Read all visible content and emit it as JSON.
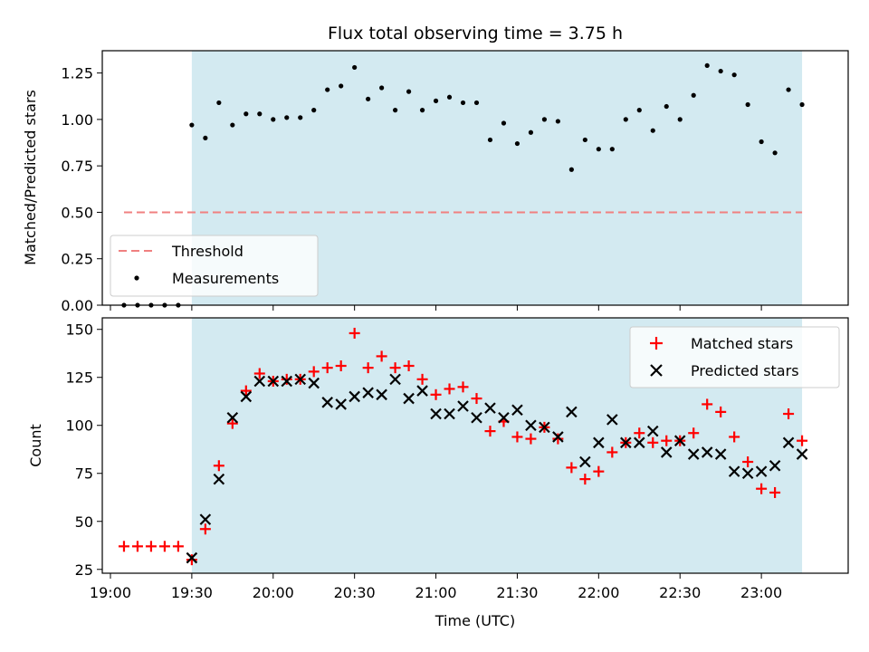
{
  "chart_data": [
    {
      "type": "scatter",
      "title": "Flux total observing time = 3.75 h",
      "ylabel": "Matched/Predicted stars",
      "xlabel": "",
      "x_range": [
        "18:57",
        "23:32"
      ],
      "ylim": [
        0,
        1.37
      ],
      "yticks": [
        "0.00",
        "0.25",
        "0.50",
        "0.75",
        "1.00",
        "1.25"
      ],
      "ytick_values": [
        0,
        0.25,
        0.5,
        0.75,
        1.0,
        1.25
      ],
      "observing_window": [
        "19:30",
        "23:15"
      ],
      "shade_color": "#d3eaf1",
      "threshold": {
        "name": "Threshold",
        "value": 0.5,
        "x_range": [
          "19:05",
          "23:15"
        ],
        "color": "#f08080"
      },
      "measurements": {
        "name": "Measurements",
        "color": "#000000",
        "x": [
          "19:05",
          "19:10",
          "19:15",
          "19:20",
          "19:25",
          "19:30",
          "19:35",
          "19:40",
          "19:45",
          "19:50",
          "19:55",
          "20:00",
          "20:05",
          "20:10",
          "20:15",
          "20:20",
          "20:25",
          "20:30",
          "20:35",
          "20:40",
          "20:45",
          "20:50",
          "20:55",
          "21:00",
          "21:05",
          "21:10",
          "21:15",
          "21:20",
          "21:25",
          "21:30",
          "21:35",
          "21:40",
          "21:45",
          "21:50",
          "21:55",
          "22:00",
          "22:05",
          "22:10",
          "22:15",
          "22:20",
          "22:25",
          "22:30",
          "22:35",
          "22:40",
          "22:45",
          "22:50",
          "22:55",
          "23:00",
          "23:05",
          "23:10",
          "23:15"
        ],
        "y": [
          0,
          0,
          0,
          0,
          0,
          0.97,
          0.9,
          1.09,
          0.97,
          1.03,
          1.03,
          1.0,
          1.01,
          1.01,
          1.05,
          1.16,
          1.18,
          1.28,
          1.11,
          1.17,
          1.05,
          1.15,
          1.05,
          1.1,
          1.12,
          1.09,
          1.09,
          0.89,
          0.98,
          0.87,
          0.93,
          1.0,
          0.99,
          0.73,
          0.89,
          0.84,
          0.84,
          1.0,
          1.05,
          0.94,
          1.07,
          1.0,
          1.13,
          1.29,
          1.26,
          1.24,
          1.08,
          0.88,
          0.82,
          1.16,
          1.08
        ]
      },
      "legend": {
        "position": "lower-left",
        "entries": [
          "Threshold",
          "Measurements"
        ]
      }
    },
    {
      "type": "scatter",
      "title": "",
      "xlabel": "Time (UTC)",
      "ylabel": "Count",
      "x_range": [
        "18:57",
        "23:32"
      ],
      "xticks": [
        "19:00",
        "19:30",
        "20:00",
        "20:30",
        "21:00",
        "21:30",
        "22:00",
        "22:30",
        "23:00"
      ],
      "ylim": [
        23,
        156
      ],
      "yticks": [
        "25",
        "50",
        "75",
        "100",
        "125",
        "150"
      ],
      "ytick_values": [
        25,
        50,
        75,
        100,
        125,
        150
      ],
      "observing_window": [
        "19:30",
        "23:15"
      ],
      "shade_color": "#d3eaf1",
      "x": [
        "19:05",
        "19:10",
        "19:15",
        "19:20",
        "19:25",
        "19:30",
        "19:35",
        "19:40",
        "19:45",
        "19:50",
        "19:55",
        "20:00",
        "20:05",
        "20:10",
        "20:15",
        "20:20",
        "20:25",
        "20:30",
        "20:35",
        "20:40",
        "20:45",
        "20:50",
        "20:55",
        "21:00",
        "21:05",
        "21:10",
        "21:15",
        "21:20",
        "21:25",
        "21:30",
        "21:35",
        "21:40",
        "21:45",
        "21:50",
        "21:55",
        "22:00",
        "22:05",
        "22:10",
        "22:15",
        "22:20",
        "22:25",
        "22:30",
        "22:35",
        "22:40",
        "22:45",
        "22:50",
        "22:55",
        "23:00",
        "23:05",
        "23:10",
        "23:15"
      ],
      "series": [
        {
          "name": "Matched stars",
          "marker": "plus",
          "color": "#ff0000",
          "values": [
            37,
            37,
            37,
            37,
            37,
            30,
            46,
            79,
            101,
            118,
            127,
            123,
            124,
            124,
            128,
            130,
            131,
            148,
            130,
            136,
            130,
            131,
            124,
            116,
            119,
            120,
            114,
            97,
            102,
            94,
            93,
            99,
            93,
            78,
            72,
            76,
            86,
            91,
            96,
            91,
            92,
            92,
            96,
            111,
            107,
            94,
            81,
            67,
            65,
            106,
            92
          ]
        },
        {
          "name": "Predicted stars",
          "marker": "x",
          "color": "#000000",
          "values": [
            null,
            null,
            null,
            null,
            null,
            31,
            51,
            72,
            104,
            115,
            123,
            123,
            123,
            124,
            122,
            112,
            111,
            115,
            117,
            116,
            124,
            114,
            118,
            106,
            106,
            110,
            104,
            109,
            104,
            108,
            100,
            99,
            94,
            107,
            81,
            91,
            103,
            91,
            91,
            97,
            86,
            92,
            85,
            86,
            85,
            76,
            75,
            76,
            79,
            91,
            85
          ]
        }
      ],
      "legend": {
        "position": "upper-right",
        "entries": [
          "Matched stars",
          "Predicted stars"
        ]
      }
    }
  ]
}
